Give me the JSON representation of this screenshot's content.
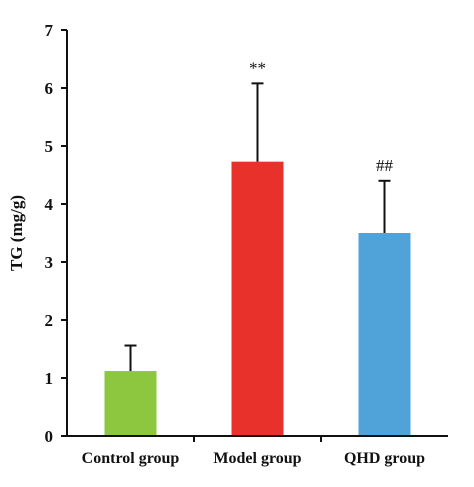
{
  "chart_data": {
    "type": "bar",
    "categories": [
      "Control group",
      "Model group",
      "QHD group"
    ],
    "values": [
      1.12,
      4.73,
      3.5
    ],
    "errors": [
      0.44,
      1.35,
      0.9
    ],
    "annotations": [
      "",
      "**",
      "##"
    ],
    "colors": [
      "#8dc63f",
      "#e8312a",
      "#4fa3d8"
    ],
    "ylabel": "TG (mg/g)",
    "xlabel": "",
    "ylim": [
      0,
      7
    ],
    "yticks": [
      0,
      1,
      2,
      3,
      4,
      5,
      6,
      7
    ],
    "grid": false
  }
}
